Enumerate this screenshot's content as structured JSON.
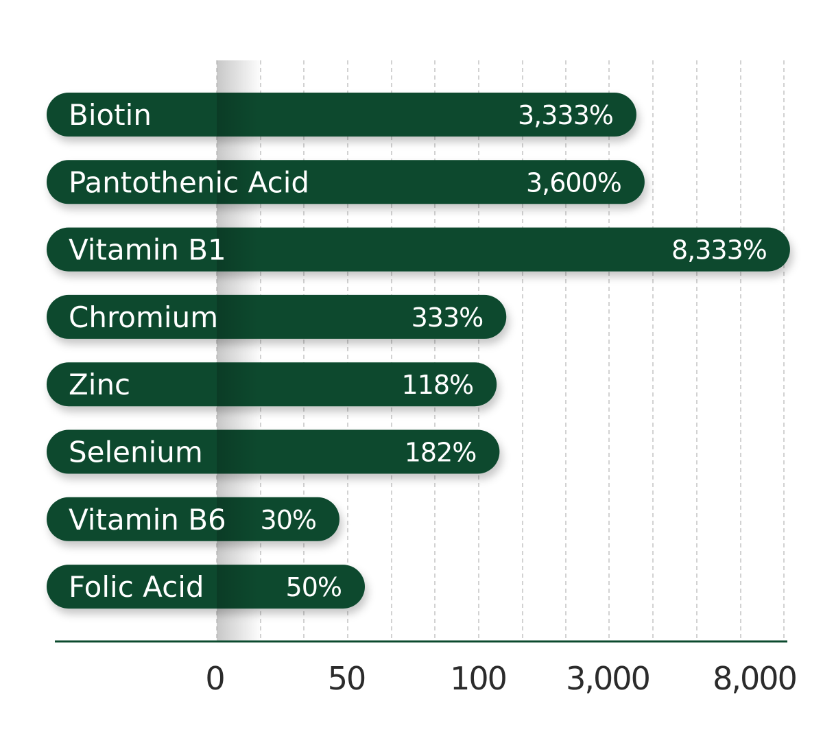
{
  "chart_data": {
    "type": "bar",
    "orientation": "horizontal",
    "categories": [
      "Biotin",
      "Pantothenic Acid",
      "Vitamin B1",
      "Chromium",
      "Zinc",
      "Selenium",
      "Vitamin B6",
      "Folic Acid"
    ],
    "values": [
      3333,
      3600,
      8333,
      333,
      118,
      182,
      30,
      50
    ],
    "value_labels": [
      "3,333%",
      "3,600%",
      "8,333%",
      "333%",
      "118%",
      "182%",
      "30%",
      "50%"
    ],
    "x_ticks": [
      "0",
      "50",
      "100",
      "3,000",
      "8,000"
    ],
    "x_tick_values": [
      0,
      50,
      100,
      3000,
      8000
    ],
    "title": "",
    "xlabel": "",
    "ylabel": "",
    "grid": "vertical dashed",
    "colors": {
      "bar": "#0b4a2e",
      "gridline": "#c4c4c4",
      "axis": "#0b4a2e",
      "tick_text": "#2b2b2b",
      "label_text": "#ffffff"
    }
  }
}
